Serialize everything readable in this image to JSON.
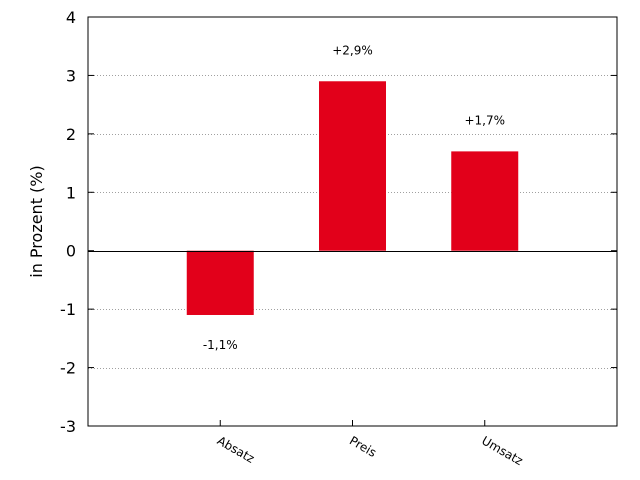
{
  "chart_data": {
    "type": "bar",
    "categories": [
      "Absatz",
      "Preis",
      "Umsatz"
    ],
    "values": [
      -1.1,
      2.9,
      1.7
    ],
    "data_labels": [
      "-1,1%",
      "+2,9%",
      "+1,7%"
    ],
    "title": "",
    "xlabel": "",
    "ylabel": "in Prozent (%)",
    "ylim": [
      -3,
      4
    ],
    "yticks": [
      -3,
      -2,
      -1,
      0,
      1,
      2,
      3,
      4
    ],
    "ytick_labels": [
      "-3",
      "-2",
      "-1",
      "0",
      "1",
      "2",
      "3",
      "4"
    ],
    "grid": true,
    "bar_color": "#e2001a",
    "grid_color": "#a0a0a0",
    "axis_color": "#000000"
  }
}
